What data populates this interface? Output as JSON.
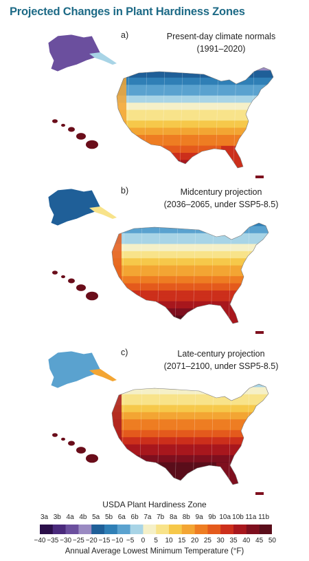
{
  "title": "Projected Changes in Plant Hardiness Zones",
  "panels": [
    {
      "letter": "a)",
      "line1": "Present-day climate normals",
      "line2": "(1991–2020)",
      "warming": 0
    },
    {
      "letter": "b)",
      "line1": "Midcentury projection",
      "line2": "(2036–2065, under SSP5-8.5)",
      "warming": 1
    },
    {
      "letter": "c)",
      "line1": "Late-century projection",
      "line2": "(2071–2100, under SSP5-8.5)",
      "warming": 2
    }
  ],
  "legend": {
    "title": "USDA Plant Hardiness Zone",
    "zones": [
      "3a",
      "3b",
      "4a",
      "4b",
      "5a",
      "5b",
      "6a",
      "6b",
      "7a",
      "7b",
      "8a",
      "8b",
      "9a",
      "9b",
      "10a",
      "10b",
      "11a",
      "11b"
    ],
    "temps": [
      "−40",
      "−35",
      "−30",
      "−25",
      "−20",
      "−15",
      "−10",
      "−5",
      "0",
      "5",
      "10",
      "15",
      "20",
      "25",
      "30",
      "35",
      "40",
      "45",
      "50"
    ],
    "axis_label": "Annual Average Lowest Minimum Temperature (°F)",
    "colors": [
      "#2b0f4a",
      "#4a2a7c",
      "#6b4f9e",
      "#9a8ac2",
      "#1f5f98",
      "#2f7fb6",
      "#5aa2cf",
      "#a8d4e6",
      "#f5f0c8",
      "#f8e38a",
      "#f6c84a",
      "#f3a533",
      "#ee7d22",
      "#e45a1c",
      "#cc2f1b",
      "#a8171d",
      "#7e0f1e",
      "#5a0d1a"
    ]
  }
}
